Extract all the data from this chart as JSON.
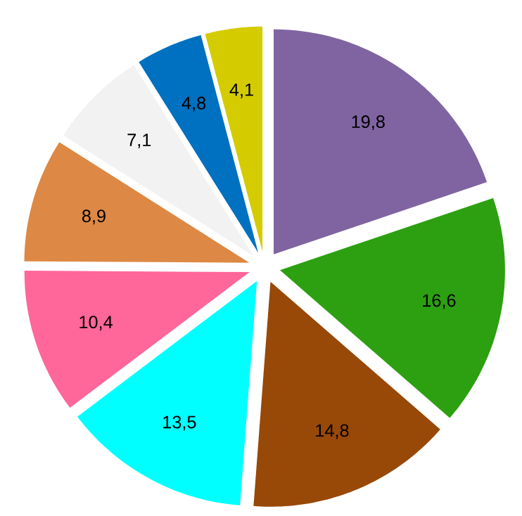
{
  "chart_data": {
    "type": "pie",
    "categories": [
      null,
      null,
      null,
      null,
      null,
      null,
      null,
      null,
      null
    ],
    "values": [
      19.8,
      16.6,
      14.8,
      13.5,
      10.4,
      8.9,
      7.1,
      4.8,
      4.1
    ],
    "value_labels": [
      "19,8",
      "16,6",
      "14,8",
      "13,5",
      "10,4",
      "8,9",
      "7,1",
      "4,8",
      "4,1"
    ],
    "colors": [
      "#8064a2",
      "#2ca010",
      "#984807",
      "#00ffff",
      "#ff6699",
      "#dd8844",
      "#f2f2f2",
      "#0070c0",
      "#d4cc00"
    ]
  }
}
